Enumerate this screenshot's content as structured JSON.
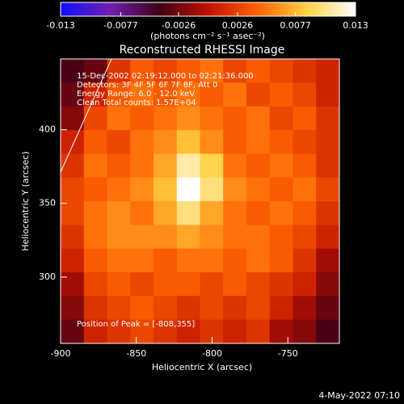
{
  "chart_data": {
    "type": "heatmap",
    "title": "Reconstructed RHESSI Image",
    "colorbar_label": "(photons cm⁻² s⁻¹ asec⁻²)",
    "xlabel": "Heliocentric X (arcsec)",
    "ylabel": "Heliocentric Y (arcsec)",
    "annotations": [
      "15-Dec-2002 02:19:12.000 to 02:21:36.000",
      "Detectors: 3F 4F 5F 6F 7F 8F, Att 0",
      "Energy Range: 6.0 - 12.0 keV",
      "Clean     Total counts: 1.57E+04"
    ],
    "peak_label": "Position of Peak = [-808,355]",
    "footer": "4-May-2022 07:10",
    "clim": [
      -0.013,
      0.013
    ],
    "cticks": [
      -0.013,
      -0.0077,
      -0.0026,
      0.0026,
      0.0077,
      0.013
    ],
    "colormap": [
      "#1010ff",
      "#7020b0",
      "#400018",
      "#c01000",
      "#ff6000",
      "#ffd040",
      "#ffffff"
    ],
    "xlim": [
      -900,
      -716
    ],
    "xticks": [
      -900,
      -850,
      -800,
      -750
    ],
    "ylim": [
      255,
      448
    ],
    "yticks": [
      300,
      350,
      400
    ],
    "z": [
      [
        -0.004,
        -0.003,
        0.002,
        0.004,
        0.003,
        0.004,
        0.005,
        0.003,
        0.004,
        0.003,
        0.002,
        0.001
      ],
      [
        -0.003,
        0.001,
        0.004,
        0.005,
        0.004,
        0.005,
        0.004,
        0.005,
        0.003,
        0.004,
        0.003,
        0.001
      ],
      [
        -0.002,
        0.003,
        0.005,
        0.004,
        0.005,
        0.006,
        0.005,
        0.004,
        0.005,
        0.003,
        0.004,
        0.002
      ],
      [
        0.001,
        0.004,
        0.003,
        0.005,
        0.006,
        0.008,
        0.006,
        0.004,
        0.005,
        0.004,
        0.003,
        0.002
      ],
      [
        0.002,
        0.005,
        0.004,
        0.005,
        0.007,
        0.011,
        0.009,
        0.005,
        0.004,
        0.005,
        0.004,
        0.002
      ],
      [
        0.003,
        0.004,
        0.005,
        0.006,
        0.008,
        0.013,
        0.01,
        0.006,
        0.005,
        0.004,
        0.005,
        0.003
      ],
      [
        0.003,
        0.005,
        0.006,
        0.005,
        0.007,
        0.01,
        0.007,
        0.005,
        0.004,
        0.005,
        0.004,
        0.002
      ],
      [
        0.002,
        0.005,
        0.006,
        0.006,
        0.006,
        0.007,
        0.006,
        0.005,
        0.005,
        0.004,
        0.003,
        0.001
      ],
      [
        0.001,
        0.004,
        0.005,
        0.005,
        0.004,
        0.005,
        0.005,
        0.004,
        0.005,
        0.004,
        0.002,
        -0.001
      ],
      [
        -0.001,
        0.003,
        0.004,
        0.003,
        0.004,
        0.004,
        0.003,
        0.004,
        0.003,
        0.002,
        0.001,
        -0.002
      ],
      [
        -0.002,
        0.002,
        0.003,
        0.004,
        0.003,
        0.002,
        0.003,
        0.002,
        0.003,
        0.001,
        -0.001,
        -0.003
      ],
      [
        -0.003,
        0.001,
        0.002,
        0.003,
        0.002,
        0.001,
        0.002,
        0.001,
        0.002,
        -0.001,
        -0.002,
        -0.004
      ]
    ]
  }
}
